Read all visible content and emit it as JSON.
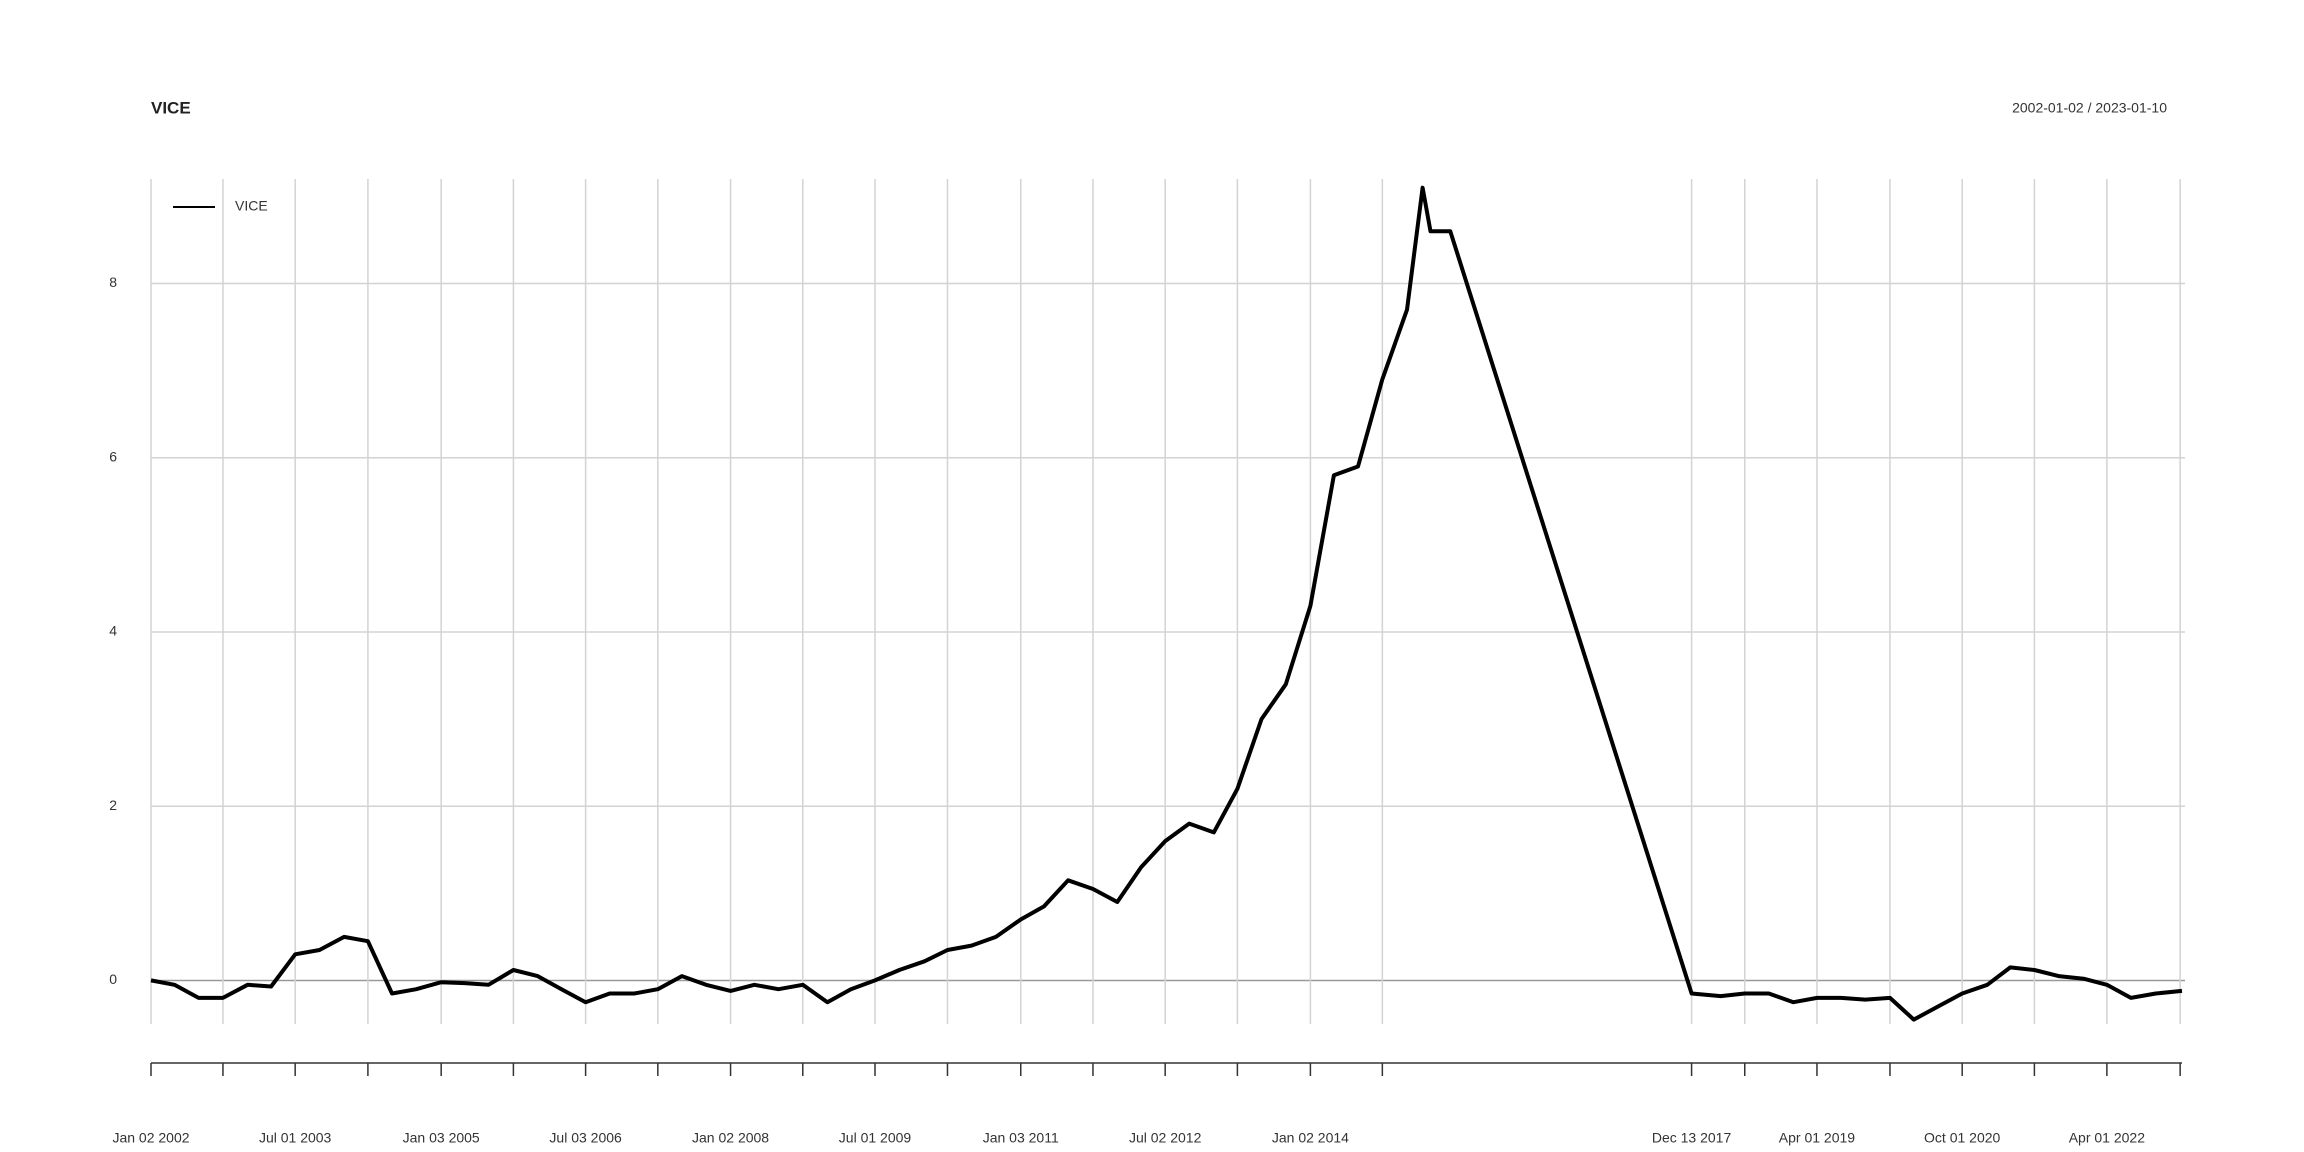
{
  "chart_data": {
    "type": "line",
    "title": "VICE",
    "subtitle": "2002-01-02 / 2023-01-10",
    "xlim": [
      "2002-01-02",
      "2023-01-10"
    ],
    "ylim": [
      -0.5,
      9.2
    ],
    "yticks": [
      0,
      2,
      4,
      6,
      8
    ],
    "grid": true,
    "legend": "top-left",
    "xticks": [
      "Jan 02 2002",
      {
        "value": "Oct 01 2002",
        "label": null
      },
      "Jul 01 2003",
      {
        "value": "Apr 01 2004",
        "label": null
      },
      "Jan 03 2005",
      {
        "value": "Oct 03 2005",
        "label": null
      },
      "Jul 03 2006",
      {
        "value": "Apr 02 2007",
        "label": null
      },
      "Jan 02 2008",
      {
        "value": "Oct 01 2008",
        "label": null
      },
      "Jul 01 2009",
      {
        "value": "Apr 01 2010",
        "label": null
      },
      "Jan 03 2011",
      {
        "value": "Oct 03 2011",
        "label": null
      },
      "Jul 02 2012",
      {
        "value": "Apr 01 2013",
        "label": null
      },
      "Jan 02 2014",
      {
        "value": "Oct 01 2014",
        "label": null
      },
      "Dec 13 2017",
      {
        "value": "Jul 02 2018",
        "label": null
      },
      "Apr 01 2019",
      {
        "value": "Jan 02 2020",
        "label": null
      },
      "Oct 01 2020",
      {
        "value": "Jul 01 2021",
        "label": null
      },
      "Apr 01 2022",
      {
        "value": "Jan 03 2023",
        "label": null
      }
    ],
    "x": [
      "2002-01-02",
      "2002-04-01",
      "2002-07-01",
      "2002-10-01",
      "2003-01-02",
      "2003-04-01",
      "2003-07-01",
      "2003-10-01",
      "2004-01-02",
      "2004-04-01",
      "2004-07-01",
      "2004-10-01",
      "2005-01-03",
      "2005-04-01",
      "2005-07-01",
      "2005-10-03",
      "2006-01-03",
      "2006-04-03",
      "2006-07-03",
      "2006-10-02",
      "2007-01-03",
      "2007-04-02",
      "2007-07-02",
      "2007-10-01",
      "2008-01-02",
      "2008-04-01",
      "2008-07-01",
      "2008-10-01",
      "2009-01-02",
      "2009-04-01",
      "2009-07-01",
      "2009-10-01",
      "2010-01-04",
      "2010-04-01",
      "2010-07-01",
      "2010-10-01",
      "2011-01-03",
      "2011-04-01",
      "2011-07-01",
      "2011-10-03",
      "2012-01-03",
      "2012-04-02",
      "2012-07-02",
      "2012-10-01",
      "2013-01-02",
      "2013-04-01",
      "2013-07-01",
      "2013-10-01",
      "2014-01-02",
      "2014-04-01",
      "2014-07-01",
      "2014-10-01",
      "2015-01-02",
      "2015-03-02",
      "2015-04-01",
      "2015-06-15",
      "2017-12-13",
      "2018-04-02",
      "2018-07-02",
      "2018-10-01",
      "2019-01-02",
      "2019-04-01",
      "2019-07-01",
      "2019-10-01",
      "2020-01-02",
      "2020-04-01",
      "2020-07-01",
      "2020-10-01",
      "2021-01-04",
      "2021-04-01",
      "2021-07-01",
      "2021-10-01",
      "2022-01-03",
      "2022-04-01",
      "2022-07-01",
      "2022-10-03",
      "2023-01-10"
    ],
    "series": [
      {
        "name": "VICE",
        "color": "#000000",
        "values": [
          0,
          -0.05,
          -0.2,
          -0.2,
          -0.05,
          -0.07,
          0.3,
          0.35,
          0.5,
          0.45,
          -0.15,
          -0.1,
          -0.02,
          -0.03,
          -0.05,
          0.12,
          0.05,
          -0.1,
          -0.25,
          -0.15,
          -0.15,
          -0.1,
          0.05,
          -0.05,
          -0.12,
          -0.05,
          -0.1,
          -0.05,
          -0.25,
          -0.1,
          0,
          0.12,
          0.22,
          0.35,
          0.4,
          0.5,
          0.7,
          0.85,
          1.15,
          1.05,
          0.9,
          1.3,
          1.6,
          1.8,
          1.7,
          2.2,
          3,
          3.4,
          4.3,
          5.8,
          5.9,
          6.9,
          7.7,
          9.1,
          8.6,
          8.6,
          -0.15,
          -0.18,
          -0.15,
          -0.15,
          -0.25,
          -0.2,
          -0.2,
          -0.22,
          -0.2,
          -0.45,
          -0.3,
          -0.15,
          -0.05,
          0.15,
          0.12,
          0.05,
          0.02,
          -0.05,
          -0.2,
          -0.15,
          -0.12
        ]
      }
    ]
  }
}
